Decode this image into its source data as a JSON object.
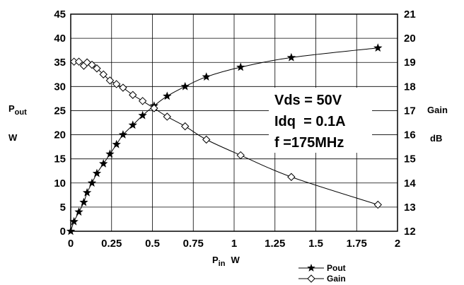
{
  "chart_data": {
    "type": "line",
    "x_label_main": "P",
    "x_label_sub": "in",
    "x_label_unit": "W",
    "y_left_label_main": "P",
    "y_left_label_sub": "out",
    "y_left_label_unit": "W",
    "y_right_label": "Gain",
    "y_right_unit": "dB",
    "x_ticks": [
      "0",
      "0.25",
      "0.5",
      "0.75",
      "1",
      "1.25",
      "1.5",
      "1.75",
      "2"
    ],
    "y_left_ticks": [
      "0",
      "5",
      "10",
      "15",
      "20",
      "25",
      "30",
      "35",
      "40",
      "45"
    ],
    "y_right_ticks": [
      "12",
      "13",
      "14",
      "15",
      "16",
      "17",
      "18",
      "19",
      "20",
      "21"
    ],
    "xlim": [
      0,
      2
    ],
    "ylim_left": [
      0,
      45
    ],
    "ylim_right": [
      12,
      21
    ],
    "grid": true,
    "legend_position": "bottom-right, below plot",
    "annotations": [
      "Vds = 50V",
      "Idq  = 0.1A",
      "f =175MHz"
    ],
    "series": [
      {
        "name": "Pout",
        "axis": "left",
        "marker": "star",
        "color": "#000000",
        "x": [
          0,
          0.02,
          0.05,
          0.08,
          0.1,
          0.13,
          0.16,
          0.2,
          0.24,
          0.28,
          0.32,
          0.38,
          0.44,
          0.51,
          0.59,
          0.7,
          0.83,
          1.04,
          1.35,
          1.88
        ],
        "y": [
          0,
          2,
          4,
          6,
          8,
          10,
          12,
          14,
          16,
          18,
          20,
          22,
          24,
          26,
          28,
          30,
          32,
          34,
          36,
          38
        ]
      },
      {
        "name": "Gain",
        "axis": "right",
        "marker": "diamond-open",
        "color": "#000000",
        "x": [
          0.02,
          0.05,
          0.08,
          0.1,
          0.13,
          0.16,
          0.2,
          0.24,
          0.28,
          0.32,
          0.38,
          0.44,
          0.51,
          0.59,
          0.7,
          0.83,
          1.04,
          1.35,
          1.88
        ],
        "y": [
          19.03,
          19.03,
          18.86,
          19.0,
          18.9,
          18.75,
          18.5,
          18.25,
          18.1,
          17.95,
          17.65,
          17.4,
          17.1,
          16.75,
          16.35,
          15.8,
          15.15,
          14.25,
          13.1
        ]
      }
    ]
  }
}
